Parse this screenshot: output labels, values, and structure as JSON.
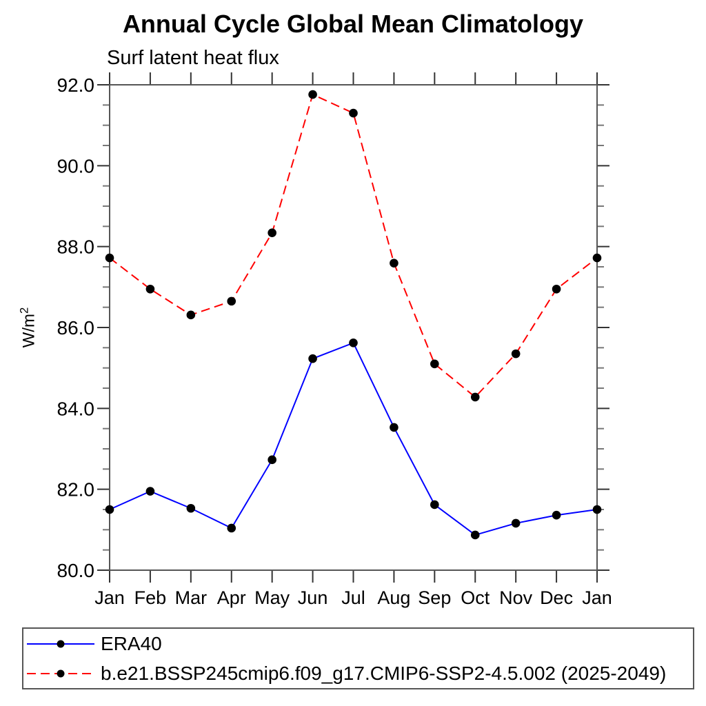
{
  "chart_data": {
    "type": "line",
    "title": "Annual Cycle Global Mean Climatology",
    "subtitle": "Surf latent heat flux",
    "ylabel": "W/m²",
    "categories": [
      "Jan",
      "Feb",
      "Mar",
      "Apr",
      "May",
      "Jun",
      "Jul",
      "Aug",
      "Sep",
      "Oct",
      "Nov",
      "Dec",
      "Jan"
    ],
    "ylim": [
      80.0,
      92.0
    ],
    "ytick_step": 2.0,
    "y_minor_step": 0.5,
    "ytick_labels": [
      "80.0",
      "82.0",
      "84.0",
      "86.0",
      "88.0",
      "90.0",
      "92.0"
    ],
    "grid": false,
    "legend_position": "bottom-left-box",
    "axis_color": "#555555",
    "marker_color": "#000000",
    "series": [
      {
        "name": "ERA40",
        "color": "#0000ff",
        "style": "solid",
        "marker": "filled-circle",
        "values": [
          81.5,
          81.95,
          81.53,
          81.04,
          82.73,
          85.23,
          85.62,
          83.53,
          81.62,
          80.87,
          81.16,
          81.36,
          81.5
        ]
      },
      {
        "name": "b.e21.BSSP245cmip6.f09_g17.CMIP6-SSP2-4.5.002 (2025-2049)",
        "color": "#ff0000",
        "style": "dashed",
        "marker": "filled-circle",
        "values": [
          87.72,
          86.95,
          86.31,
          86.65,
          88.34,
          91.76,
          91.3,
          87.59,
          85.1,
          84.28,
          85.35,
          86.95,
          87.72
        ]
      }
    ]
  }
}
